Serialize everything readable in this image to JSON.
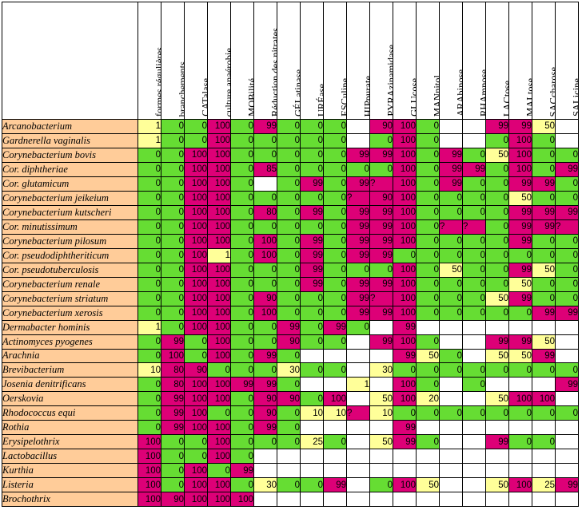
{
  "colors": {
    "zero": "#66dd33",
    "hundred": "#dd0077",
    "intermediate": "#ffff99",
    "empty": "#ffffff",
    "organism": "#ffcc99"
  },
  "columns": [
    "formes régulières",
    "branchements",
    "CATalase",
    "culture anaérobie",
    "MOBilité",
    "Réduction des nitrates",
    "GÉLatinase",
    "URÉase",
    "ESCuline",
    "HIPpurate",
    "PYRAzinamidase",
    "GLUcose",
    "MANnitol",
    "ARAbinose",
    "RHAmnose",
    "LACtose",
    "MALtose",
    "SACcharose",
    "SALicine"
  ],
  "rows": [
    {
      "organism": "Arcanobacterium",
      "values": [
        "1",
        "0",
        "0",
        "100",
        "0",
        "99",
        "0",
        "0",
        "0",
        "",
        "90",
        "100",
        "0",
        "",
        "",
        "99",
        "99",
        "50",
        ""
      ]
    },
    {
      "organism": "Gardnerella vaginalis",
      "values": [
        "1",
        "0",
        "0",
        "100",
        "0",
        "0",
        "0",
        "0",
        "0",
        "",
        "0",
        "100",
        "0",
        "",
        "",
        "0",
        "100",
        "0",
        ""
      ]
    },
    {
      "organism": "Corynebacterium bovis",
      "values": [
        "0",
        "0",
        "100",
        "100",
        "0",
        "0",
        "0",
        "0",
        "0",
        "99",
        "99",
        "100",
        "0",
        "99",
        "0",
        "50",
        "100",
        "0",
        "0"
      ]
    },
    {
      "organism": "Cor. diphtheriae",
      "values": [
        "0",
        "0",
        "100",
        "100",
        "0",
        "85",
        "0",
        "0",
        "0",
        "0",
        "0",
        "100",
        "0",
        "99",
        "99",
        "0",
        "100",
        "0",
        "99"
      ]
    },
    {
      "organism": "Cor. glutamicum",
      "values": [
        "0",
        "0",
        "100",
        "100",
        "0",
        "",
        "0",
        "99",
        "0",
        "99",
        "?",
        "100",
        "0",
        "99",
        "0",
        "0",
        "99",
        "99",
        "0"
      ]
    },
    {
      "organism": "Corynebacterium jeikeium",
      "values": [
        "0",
        "0",
        "100",
        "100",
        "0",
        "0",
        "0",
        "0",
        "0",
        "?",
        "90",
        "100",
        "0",
        "0",
        "0",
        "0",
        "50",
        "0",
        "0"
      ]
    },
    {
      "organism": "Corynebacterium kutscheri",
      "values": [
        "0",
        "0",
        "100",
        "100",
        "0",
        "80",
        "0",
        "99",
        "0",
        "99",
        "99",
        "100",
        "0",
        "0",
        "0",
        "0",
        "99",
        "99",
        "99"
      ]
    },
    {
      "organism": "Cor. minutissimum",
      "values": [
        "0",
        "0",
        "100",
        "100",
        "0",
        "0",
        "0",
        "0",
        "0",
        "99",
        "99",
        "100",
        "0",
        "?",
        "?",
        "0",
        "99",
        "99",
        "?"
      ]
    },
    {
      "organism": "Corynebacterium pilosum",
      "values": [
        "0",
        "0",
        "100",
        "100",
        "0",
        "100",
        "0",
        "99",
        "0",
        "99",
        "99",
        "100",
        "0",
        "0",
        "0",
        "0",
        "99",
        "0",
        "0"
      ]
    },
    {
      "organism": "Cor. pseudodiphtheriticum",
      "values": [
        "0",
        "0",
        "100",
        "1",
        "0",
        "100",
        "0",
        "99",
        "0",
        "99",
        "99",
        "0",
        "0",
        "0",
        "0",
        "0",
        "0",
        "0",
        "0"
      ]
    },
    {
      "organism": "Cor. pseudotuberculosis",
      "values": [
        "0",
        "0",
        "100",
        "100",
        "0",
        "0",
        "0",
        "99",
        "0",
        "0",
        "0",
        "100",
        "0",
        "50",
        "0",
        "0",
        "99",
        "50",
        "0"
      ]
    },
    {
      "organism": "Corynebacterium renale",
      "values": [
        "0",
        "0",
        "100",
        "100",
        "0",
        "0",
        "0",
        "99",
        "0",
        "99",
        "99",
        "100",
        "0",
        "0",
        "0",
        "0",
        "50",
        "0",
        "0"
      ]
    },
    {
      "organism": "Corynebacterium striatum",
      "values": [
        "0",
        "0",
        "100",
        "100",
        "0",
        "90",
        "0",
        "0",
        "0",
        "99",
        "?",
        "100",
        "0",
        "0",
        "0",
        "50",
        "99",
        "0",
        "0"
      ]
    },
    {
      "organism": "Corynebacterium xerosis",
      "values": [
        "0",
        "0",
        "100",
        "100",
        "0",
        "100",
        "0",
        "0",
        "0",
        "99",
        "99",
        "100",
        "0",
        "0",
        "0",
        "0",
        "0",
        "99",
        "99"
      ]
    },
    {
      "organism": "Dermabacter hominis",
      "values": [
        "1",
        "0",
        "100",
        "100",
        "0",
        "0",
        "99",
        "0",
        "99",
        "0",
        "",
        "99",
        "",
        "",
        "",
        "",
        "",
        "",
        ""
      ]
    },
    {
      "organism": "Actinomyces pyogenes",
      "values": [
        "0",
        "99",
        "0",
        "100",
        "0",
        "0",
        "90",
        "0",
        "0",
        "",
        "99",
        "100",
        "0",
        "",
        "",
        "99",
        "99",
        "50",
        ""
      ]
    },
    {
      "organism": "Arachnia",
      "values": [
        "0",
        "100",
        "0",
        "100",
        "0",
        "99",
        "0",
        "",
        "",
        "",
        "",
        "99",
        "50",
        "0",
        "",
        "50",
        "50",
        "99",
        ""
      ]
    },
    {
      "organism": "Brevibacterium",
      "values": [
        "10",
        "80",
        "90",
        "0",
        "0",
        "0",
        "30",
        "0",
        "0",
        "",
        "30",
        "0",
        "0",
        "0",
        "0",
        "0",
        "0",
        "0",
        "0"
      ]
    },
    {
      "organism": "Josenia denitrificans",
      "values": [
        "0",
        "80",
        "100",
        "100",
        "99",
        "99",
        "0",
        "",
        "",
        "1",
        "",
        "100",
        "0",
        "",
        "0",
        "",
        "",
        "",
        "99"
      ]
    },
    {
      "organism": "Oerskovia",
      "values": [
        "0",
        "99",
        "100",
        "100",
        "0",
        "90",
        "90",
        "0",
        "100",
        "",
        "50",
        "100",
        "20",
        "",
        "",
        "50",
        "100",
        "100",
        ""
      ]
    },
    {
      "organism": "Rhodococcus equi",
      "values": [
        "0",
        "99",
        "100",
        "0",
        "0",
        "90",
        "0",
        "10",
        "10",
        "?",
        "10",
        "0",
        "0",
        "0",
        "0",
        "0",
        "0",
        "0",
        "0"
      ]
    },
    {
      "organism": "Rothia",
      "values": [
        "0",
        "99",
        "100",
        "100",
        "0",
        "99",
        "0",
        "",
        "",
        "",
        "",
        "99",
        "",
        "",
        "",
        "",
        "",
        "",
        ""
      ]
    },
    {
      "organism": "Erysipelothrix",
      "values": [
        "100",
        "0",
        "0",
        "100",
        "0",
        "0",
        "0",
        "25",
        "0",
        "",
        "50",
        "99",
        "0",
        "",
        "",
        "99",
        "0",
        "0",
        ""
      ]
    },
    {
      "organism": "Lactobacillus",
      "values": [
        "100",
        "0",
        "0",
        "100",
        "0",
        "",
        "",
        "",
        "",
        "",
        "",
        "",
        "",
        "",
        "",
        "",
        "",
        "",
        ""
      ]
    },
    {
      "organism": "Kurthia",
      "values": [
        "100",
        "0",
        "100",
        "0",
        "99",
        "",
        "",
        "",
        "",
        "",
        "",
        "",
        "",
        "",
        "",
        "",
        "",
        "",
        ""
      ]
    },
    {
      "organism": "Listeria",
      "values": [
        "100",
        "0",
        "100",
        "100",
        "0",
        "30",
        "0",
        "0",
        "99",
        "",
        "0",
        "100",
        "50",
        "",
        "",
        "50",
        "100",
        "25",
        "99"
      ]
    },
    {
      "organism": "Brochothrix",
      "values": [
        "100",
        "90",
        "100",
        "100",
        "100",
        "",
        "",
        "",
        "",
        "",
        "",
        "",
        "",
        "",
        "",
        "",
        "",
        "",
        ""
      ]
    }
  ]
}
